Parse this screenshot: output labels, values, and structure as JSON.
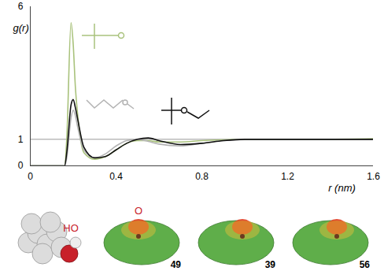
{
  "chart_data": {
    "type": "line",
    "x_label": "r (nm)",
    "y_label": "g(r)",
    "x": [
      0,
      0.1,
      0.16,
      0.17,
      0.19,
      0.2,
      0.21,
      0.22,
      0.25,
      0.3,
      0.35,
      0.4,
      0.45,
      0.5,
      0.55,
      0.6,
      0.7,
      0.8,
      0.9,
      1.0,
      1.2,
      1.4,
      1.6
    ],
    "series": [
      {
        "color": "#a9c27c",
        "values": [
          0,
          0,
          0,
          1.0,
          5.4,
          4.6,
          3.0,
          2.0,
          0.5,
          0.25,
          0.35,
          0.6,
          0.85,
          0.95,
          0.95,
          0.9,
          0.9,
          0.95,
          0.98,
          1.0,
          1.0,
          1.0,
          1.02
        ]
      },
      {
        "color": "#b3b3b3",
        "values": [
          0,
          0,
          0,
          0.3,
          1.8,
          2.1,
          1.9,
          1.5,
          0.6,
          0.3,
          0.45,
          0.75,
          0.95,
          1.0,
          0.92,
          0.82,
          0.75,
          0.85,
          0.95,
          1.0,
          1.0,
          1.0,
          1.0
        ]
      },
      {
        "color": "#111111",
        "values": [
          0,
          0,
          0,
          0.5,
          2.3,
          2.5,
          2.2,
          1.8,
          0.7,
          0.3,
          0.35,
          0.6,
          0.85,
          1.0,
          1.05,
          0.95,
          0.8,
          0.85,
          0.95,
          1.0,
          1.0,
          1.0,
          1.0
        ]
      }
    ],
    "xlim": [
      0,
      1.6
    ],
    "xticks": [
      0,
      0.4,
      0.8,
      1.2,
      1.6
    ],
    "ylim": [
      0,
      6
    ],
    "yticks": [
      0,
      1,
      6
    ],
    "reference_y": 1,
    "grid": false,
    "molecules": [
      {
        "label": "HO"
      },
      {
        "label": "O",
        "value": 49
      },
      {
        "value": 39
      },
      {
        "value": 56
      }
    ]
  }
}
